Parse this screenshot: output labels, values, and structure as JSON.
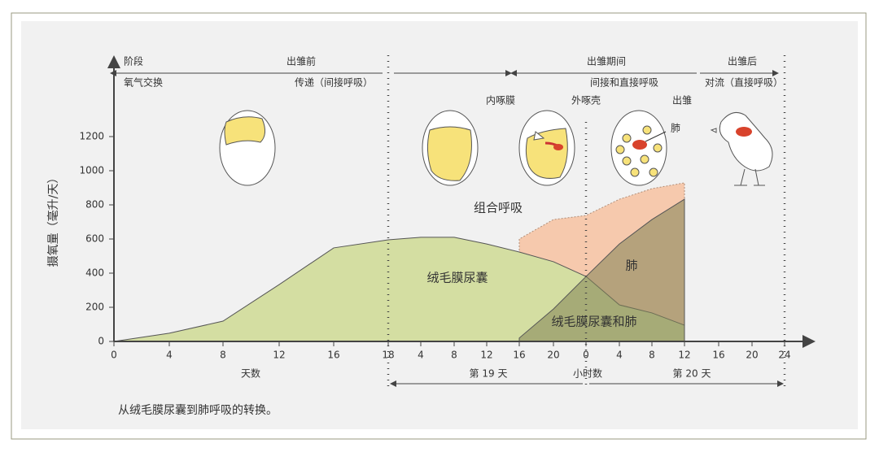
{
  "chart_data": {
    "type": "area",
    "y_label": "摄氧量（毫升/天）",
    "ylim": [
      0,
      1200
    ],
    "yticks": [
      0,
      200,
      400,
      600,
      800,
      1000,
      1200
    ],
    "categories": [
      "0",
      "4",
      "8",
      "12",
      "16",
      "18",
      "4",
      "8",
      "12",
      "16",
      "20",
      "0",
      "4",
      "8",
      "12",
      "16",
      "20",
      "24"
    ],
    "series": [
      {
        "name": "组合呼吸",
        "color": "#f6c9ad",
        "values": [
          null,
          null,
          null,
          null,
          null,
          null,
          null,
          null,
          null,
          600,
          714,
          738,
          833,
          895,
          929,
          null,
          null,
          null
        ]
      },
      {
        "name": "绒毛膜尿囊",
        "color": "#d4dea2",
        "values": [
          0,
          48,
          119,
          333,
          548,
          595,
          610,
          610,
          571,
          524,
          467,
          381,
          214,
          167,
          95,
          null,
          null,
          null
        ]
      },
      {
        "name": "肺",
        "color": "#7f8154",
        "values": [
          null,
          null,
          null,
          null,
          null,
          null,
          null,
          null,
          null,
          20,
          190,
          380,
          571,
          714,
          833,
          null,
          null,
          null
        ]
      }
    ],
    "overlap_label": "绒毛膜尿囊和肺",
    "phase_label": "阶段",
    "phase_pre": "出雏前",
    "phase_during": "出雏期间",
    "phase_post": "出雏后",
    "exchange_label": "氧气交换",
    "exchange_pre": "传递（间接呼吸）",
    "exchange_during": "间接和直接呼吸",
    "exchange_post": "对流（直接呼吸）",
    "stage_internal": "内啄膜",
    "stage_external": "外啄壳",
    "stage_hatch": "出雏",
    "egg_lung": "肺",
    "x_days": "天数",
    "x_day19": "第 19 天",
    "x_hours": "小时数",
    "x_day20": "第 20 天",
    "caption": "从绒毛膜尿囊到肺呼吸的转换。"
  }
}
